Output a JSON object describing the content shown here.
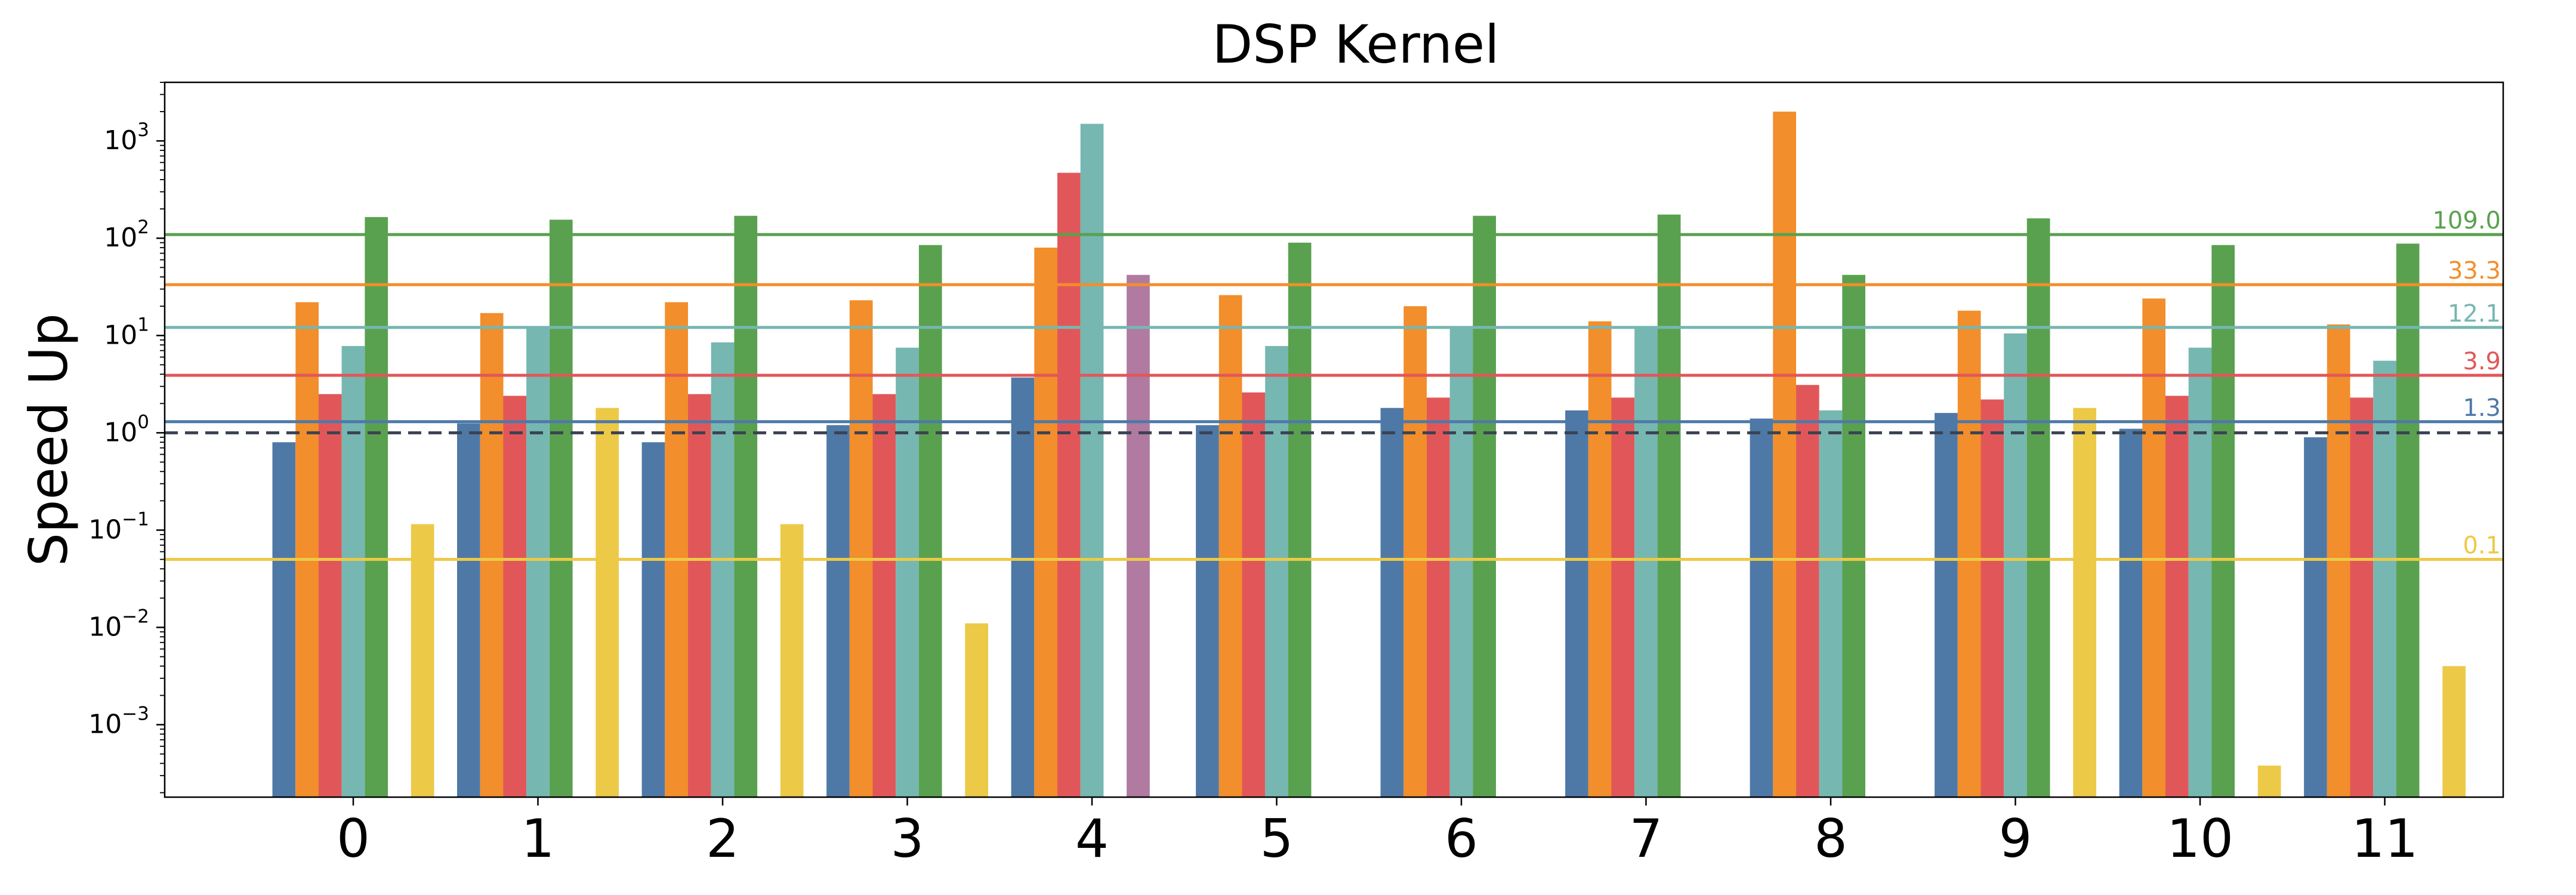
{
  "chart_data": {
    "type": "bar",
    "title": "DSP Kernel",
    "xlabel": "",
    "ylabel": "Speed Up",
    "yscale": "log",
    "ylim": [
      0.00018,
      4000
    ],
    "yticks": [
      {
        "value": 0.001,
        "base": "10",
        "exp": "−3"
      },
      {
        "value": 0.01,
        "base": "10",
        "exp": "−2"
      },
      {
        "value": 0.1,
        "base": "10",
        "exp": "−1"
      },
      {
        "value": 1,
        "base": "10",
        "exp": "0"
      },
      {
        "value": 10,
        "base": "10",
        "exp": "1"
      },
      {
        "value": 100,
        "base": "10",
        "exp": "2"
      },
      {
        "value": 1000,
        "base": "10",
        "exp": "3"
      }
    ],
    "categories": [
      "0",
      "1",
      "2",
      "3",
      "4",
      "5",
      "6",
      "7",
      "8",
      "9",
      "10",
      "11"
    ],
    "grid": false,
    "legend": "none",
    "series": [
      {
        "color": "#4e79a7",
        "values": [
          0.8,
          1.25,
          0.8,
          1.2,
          3.7,
          1.2,
          1.8,
          1.7,
          1.4,
          1.6,
          1.1,
          0.9
        ]
      },
      {
        "color": "#f28e2b",
        "values": [
          22,
          17,
          22,
          23,
          80,
          26,
          20,
          14,
          2000,
          18,
          24,
          13
        ]
      },
      {
        "color": "#e15759",
        "values": [
          2.5,
          2.4,
          2.5,
          2.5,
          470,
          2.6,
          2.3,
          2.3,
          3.1,
          2.2,
          2.4,
          2.3
        ]
      },
      {
        "color": "#76b7b2",
        "values": [
          7.8,
          12.5,
          8.5,
          7.5,
          1500,
          7.8,
          12.0,
          12.0,
          1.7,
          10.5,
          7.5,
          5.5
        ]
      },
      {
        "color": "#59a14f",
        "values": [
          165,
          155,
          170,
          85,
          null,
          90,
          170,
          175,
          42,
          160,
          85,
          88
        ]
      },
      {
        "color": "#b07aa1",
        "values": [
          null,
          null,
          null,
          null,
          42,
          null,
          null,
          null,
          null,
          null,
          null,
          null
        ]
      },
      {
        "color": "#edc948",
        "values": [
          0.115,
          1.8,
          0.115,
          0.011,
          null,
          null,
          null,
          null,
          null,
          1.8,
          0.00038,
          0.004
        ]
      }
    ],
    "reference_lines": [
      {
        "value": 109.0,
        "label": "109.0",
        "color": "#59a14f",
        "style": "solid"
      },
      {
        "value": 33.3,
        "label": "33.3",
        "color": "#f28e2b",
        "style": "solid"
      },
      {
        "value": 12.1,
        "label": "12.1",
        "color": "#76b7b2",
        "style": "solid"
      },
      {
        "value": 3.9,
        "label": "3.9",
        "color": "#e15759",
        "style": "solid"
      },
      {
        "value": 1.3,
        "label": "1.3",
        "color": "#4e79a7",
        "style": "solid"
      },
      {
        "value": 0.05,
        "label": "0.1",
        "color": "#edc948",
        "style": "solid"
      },
      {
        "value": 1,
        "label": "",
        "color": "#3b4252",
        "style": "dashed"
      }
    ]
  }
}
